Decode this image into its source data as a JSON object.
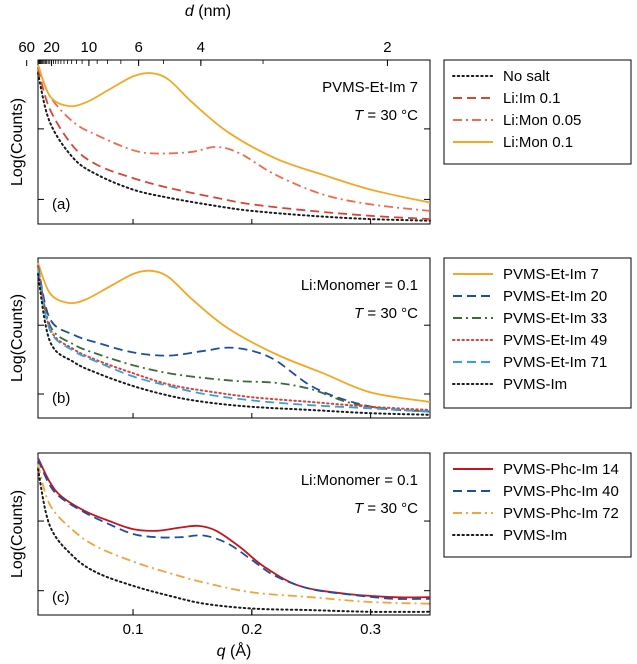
{
  "top_axis": {
    "label": "d",
    "unit": "(nm)",
    "tick_labels": [
      "60",
      "20",
      "10",
      "6",
      "4",
      "2"
    ],
    "tick_values_nm": [
      60,
      20,
      10,
      6,
      4,
      2
    ]
  },
  "x_axis": {
    "label": "q",
    "unit": "(Å)",
    "tick_labels": [
      "0.1",
      "0.2",
      "0.3"
    ],
    "tick_values": [
      0.1,
      0.2,
      0.3
    ]
  },
  "styles": {
    "black": "#1a1a1a",
    "red": "#d6453a",
    "salmon": "#ef6a4e",
    "orange": "#f5a623",
    "blue": "#1f4e9c",
    "green": "#3e6b3a",
    "pink": "#d9423e",
    "cyan": "#2fa5d6",
    "darkred": "#c8141c",
    "goldenrod": "#f2a33a"
  },
  "chart_data": [
    {
      "type": "line",
      "panel_label": "(a)",
      "ylabel": "Log(Counts)",
      "annotation_lines": [
        "PVMS-Et-Im 7",
        "T = 30 °C"
      ],
      "xlim": [
        0.02,
        0.35
      ],
      "ylim": [
        0,
        1
      ],
      "series": [
        {
          "name": "No salt",
          "color": "#1a1a1a",
          "dash": "dot",
          "x": [
            0.02,
            0.03,
            0.05,
            0.07,
            0.1,
            0.13,
            0.17,
            0.2,
            0.25,
            0.3,
            0.35
          ],
          "y": [
            0.92,
            0.62,
            0.4,
            0.3,
            0.21,
            0.16,
            0.11,
            0.08,
            0.05,
            0.03,
            0.02
          ]
        },
        {
          "name": "Li:Im 0.1",
          "color": "#d6453a",
          "dash": "dash",
          "x": [
            0.02,
            0.03,
            0.05,
            0.07,
            0.1,
            0.13,
            0.17,
            0.2,
            0.25,
            0.3,
            0.35
          ],
          "y": [
            0.95,
            0.7,
            0.47,
            0.36,
            0.28,
            0.22,
            0.16,
            0.12,
            0.08,
            0.05,
            0.03
          ]
        },
        {
          "name": "Li:Mon 0.05",
          "color": "#ef6a4e",
          "dash": "dashdot",
          "x": [
            0.02,
            0.03,
            0.05,
            0.07,
            0.1,
            0.12,
            0.15,
            0.17,
            0.19,
            0.22,
            0.26,
            0.3,
            0.35
          ],
          "y": [
            0.97,
            0.78,
            0.62,
            0.54,
            0.45,
            0.43,
            0.44,
            0.47,
            0.43,
            0.3,
            0.18,
            0.12,
            0.08
          ]
        },
        {
          "name": "Li:Mon 0.1",
          "color": "#f5a623",
          "dash": "solid",
          "x": [
            0.02,
            0.03,
            0.045,
            0.06,
            0.08,
            0.1,
            0.115,
            0.13,
            0.15,
            0.18,
            0.22,
            0.26,
            0.3,
            0.35
          ],
          "y": [
            0.97,
            0.78,
            0.72,
            0.74,
            0.82,
            0.9,
            0.92,
            0.88,
            0.74,
            0.56,
            0.4,
            0.3,
            0.21,
            0.13
          ]
        }
      ]
    },
    {
      "type": "line",
      "panel_label": "(b)",
      "ylabel": "Log(Counts)",
      "annotation_lines": [
        "Li:Monomer = 0.1",
        "T = 30 °C"
      ],
      "xlim": [
        0.02,
        0.35
      ],
      "ylim": [
        0,
        1
      ],
      "series": [
        {
          "name": "PVMS-Et-Im 7",
          "color": "#f5a623",
          "dash": "solid",
          "x": [
            0.02,
            0.03,
            0.045,
            0.06,
            0.08,
            0.1,
            0.115,
            0.13,
            0.15,
            0.18,
            0.22,
            0.26,
            0.3,
            0.35
          ],
          "y": [
            0.97,
            0.78,
            0.72,
            0.74,
            0.82,
            0.9,
            0.92,
            0.88,
            0.74,
            0.56,
            0.4,
            0.28,
            0.16,
            0.1
          ]
        },
        {
          "name": "PVMS-Et-Im 20",
          "color": "#1f4e9c",
          "dash": "dash",
          "x": [
            0.02,
            0.03,
            0.05,
            0.07,
            0.1,
            0.13,
            0.16,
            0.18,
            0.2,
            0.22,
            0.25,
            0.28,
            0.31,
            0.35
          ],
          "y": [
            0.95,
            0.62,
            0.52,
            0.47,
            0.41,
            0.39,
            0.42,
            0.44,
            0.42,
            0.36,
            0.2,
            0.11,
            0.06,
            0.04
          ]
        },
        {
          "name": "PVMS-Et-Im 33",
          "color": "#3e6b3a",
          "dash": "dashdot",
          "x": [
            0.02,
            0.03,
            0.05,
            0.07,
            0.1,
            0.13,
            0.16,
            0.19,
            0.22,
            0.25,
            0.28,
            0.31,
            0.35
          ],
          "y": [
            0.95,
            0.58,
            0.46,
            0.4,
            0.33,
            0.28,
            0.25,
            0.23,
            0.22,
            0.18,
            0.1,
            0.06,
            0.04
          ]
        },
        {
          "name": "PVMS-Et-Im 49",
          "color": "#d9423e",
          "dash": "dot",
          "x": [
            0.02,
            0.03,
            0.05,
            0.07,
            0.1,
            0.13,
            0.16,
            0.2,
            0.25,
            0.3,
            0.35
          ],
          "y": [
            0.95,
            0.56,
            0.43,
            0.36,
            0.28,
            0.21,
            0.17,
            0.13,
            0.1,
            0.07,
            0.05
          ]
        },
        {
          "name": "PVMS-Et-Im 71",
          "color": "#2fa5d6",
          "dash": "dash",
          "x": [
            0.02,
            0.03,
            0.05,
            0.07,
            0.1,
            0.13,
            0.16,
            0.2,
            0.25,
            0.3,
            0.35
          ],
          "y": [
            0.93,
            0.55,
            0.42,
            0.35,
            0.26,
            0.2,
            0.15,
            0.11,
            0.08,
            0.06,
            0.04
          ]
        },
        {
          "name": "PVMS-Im",
          "color": "#1a1a1a",
          "dash": "dot",
          "x": [
            0.02,
            0.03,
            0.05,
            0.07,
            0.1,
            0.13,
            0.16,
            0.2,
            0.25,
            0.3,
            0.35
          ],
          "y": [
            0.9,
            0.48,
            0.35,
            0.28,
            0.2,
            0.14,
            0.1,
            0.07,
            0.05,
            0.03,
            0.02
          ]
        }
      ]
    },
    {
      "type": "line",
      "panel_label": "(c)",
      "ylabel": "Log(Counts)",
      "annotation_lines": [
        "Li:Monomer = 0.1",
        "T = 30 °C"
      ],
      "xlim": [
        0.02,
        0.35
      ],
      "ylim": [
        0,
        1
      ],
      "series": [
        {
          "name": "PVMS-Phc-Im 14",
          "color": "#c8141c",
          "dash": "solid",
          "x": [
            0.02,
            0.03,
            0.04,
            0.06,
            0.08,
            0.1,
            0.12,
            0.14,
            0.155,
            0.17,
            0.19,
            0.21,
            0.24,
            0.28,
            0.32,
            0.35
          ],
          "y": [
            0.97,
            0.82,
            0.73,
            0.64,
            0.58,
            0.53,
            0.52,
            0.54,
            0.55,
            0.52,
            0.42,
            0.3,
            0.18,
            0.13,
            0.11,
            0.11
          ]
        },
        {
          "name": "PVMS-Phc-Im 40",
          "color": "#1f4e9c",
          "dash": "dash",
          "x": [
            0.02,
            0.03,
            0.04,
            0.06,
            0.08,
            0.1,
            0.12,
            0.14,
            0.16,
            0.18,
            0.2,
            0.22,
            0.25,
            0.29,
            0.32,
            0.35
          ],
          "y": [
            0.96,
            0.8,
            0.72,
            0.63,
            0.56,
            0.5,
            0.48,
            0.48,
            0.49,
            0.44,
            0.34,
            0.24,
            0.16,
            0.12,
            0.1,
            0.1
          ]
        },
        {
          "name": "PVMS-Phc-Im 72",
          "color": "#f2a33a",
          "dash": "dashdot",
          "x": [
            0.02,
            0.03,
            0.05,
            0.07,
            0.1,
            0.13,
            0.16,
            0.2,
            0.25,
            0.3,
            0.35
          ],
          "y": [
            0.93,
            0.68,
            0.52,
            0.42,
            0.33,
            0.26,
            0.2,
            0.14,
            0.11,
            0.08,
            0.07
          ]
        },
        {
          "name": "PVMS-Im",
          "color": "#1a1a1a",
          "dash": "dot",
          "x": [
            0.02,
            0.03,
            0.05,
            0.07,
            0.1,
            0.13,
            0.16,
            0.2,
            0.25,
            0.3,
            0.35
          ],
          "y": [
            0.9,
            0.55,
            0.36,
            0.26,
            0.18,
            0.12,
            0.07,
            0.04,
            0.03,
            0.02,
            0.02
          ]
        }
      ]
    }
  ]
}
